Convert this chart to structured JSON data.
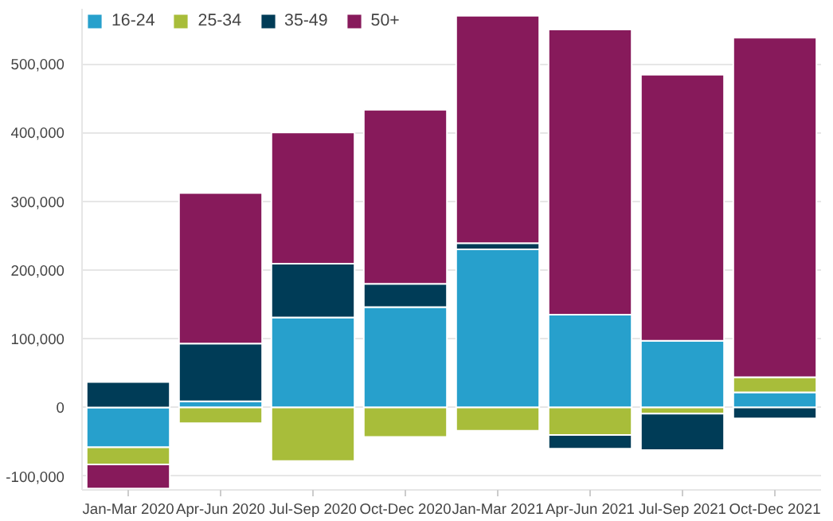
{
  "chart_data": {
    "type": "bar",
    "stacked": true,
    "categories": [
      "Jan-Mar 2020",
      "Apr-Jun 2020",
      "Jul-Sep 2020",
      "Oct-Dec 2020",
      "Jan-Mar 2021",
      "Apr-Jun 2021",
      "Jul-Sep 2021",
      "Oct-Dec 2021"
    ],
    "series": [
      {
        "name": "16-24",
        "color": "#27a0cc",
        "values": [
          -58000,
          9000,
          131000,
          146000,
          230000,
          135000,
          97000,
          22000
        ]
      },
      {
        "name": "25-34",
        "color": "#a8bd3a",
        "values": [
          -25000,
          -23000,
          -78000,
          -43000,
          -34000,
          -40000,
          -9000,
          22000
        ]
      },
      {
        "name": "35-49",
        "color": "#003c57",
        "values": [
          37000,
          84000,
          78000,
          34000,
          9000,
          -20000,
          -53000,
          -16000
        ]
      },
      {
        "name": "50+",
        "color": "#871a5b",
        "values": [
          -35000,
          219000,
          191000,
          253000,
          331000,
          415000,
          387000,
          494000
        ]
      }
    ],
    "ylim": [
      -120000,
      580000
    ],
    "yticks": [
      {
        "value": -100000,
        "label": "-100,000"
      },
      {
        "value": 0,
        "label": "0"
      },
      {
        "value": 100000,
        "label": "100,000"
      },
      {
        "value": 200000,
        "label": "200,000"
      },
      {
        "value": 300000,
        "label": "300,000"
      },
      {
        "value": 400000,
        "label": "400,000"
      },
      {
        "value": 500000,
        "label": "500,000"
      }
    ],
    "grid": "y",
    "legend": "top left"
  }
}
